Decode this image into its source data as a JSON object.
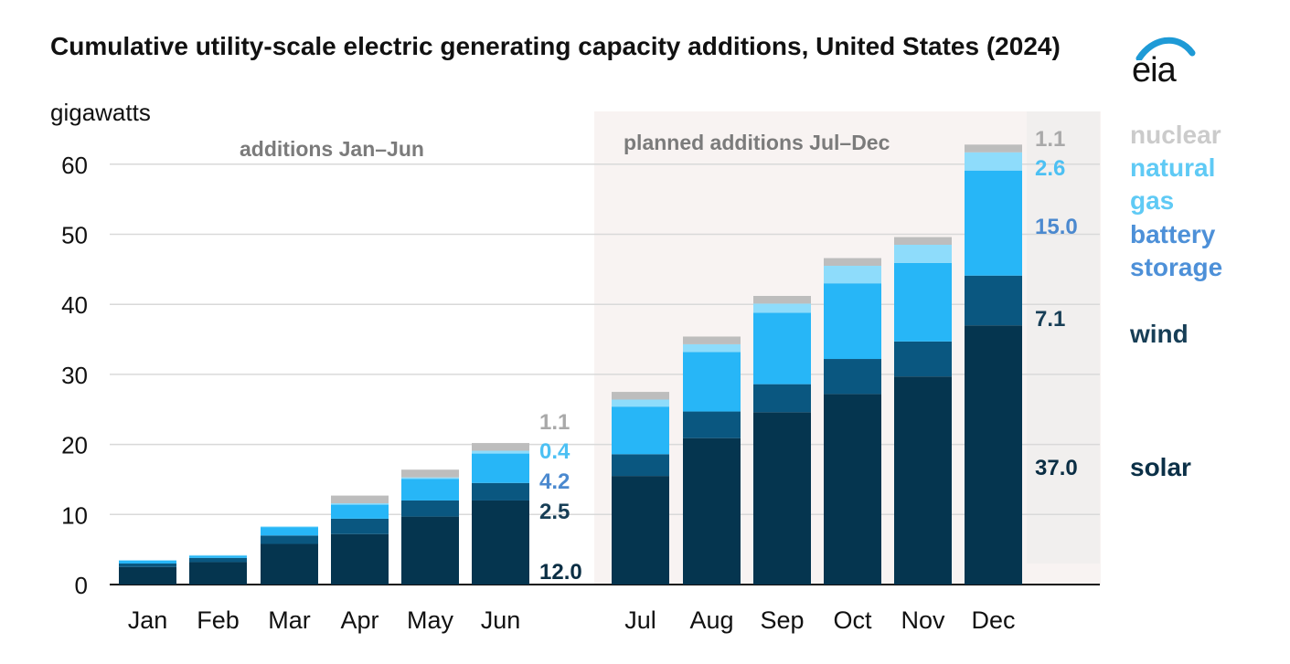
{
  "header": {
    "title": "Cumulative utility-scale electric generating capacity additions, United States (2024)",
    "unit": "gigawatts",
    "logo_text": "eia"
  },
  "colors": {
    "solar": "#05354f",
    "wind": "#0a5780",
    "battery": "#27b6f7",
    "gas": "#8edcfb",
    "nuclear": "#bdbdbd",
    "shade": "#f8f3f2",
    "legend_nuclear": "#cbcbcb",
    "legend_gas": "#5fcaf5",
    "legend_battery": "#4d90d8",
    "legend_solar": "#0b3047",
    "region_label": "#7b7b7b",
    "label_nuclear": "#a9a9a9",
    "label_gas": "#4cc0f3",
    "label_battery": "#4b89cf",
    "label_wind": "#173e56",
    "label_solar": "#0b2e44"
  },
  "chart_data": {
    "type": "bar",
    "stacked": true,
    "title": "Cumulative utility-scale electric generating capacity additions, United States (2024)",
    "ylabel": "gigawatts",
    "ylim": [
      0,
      65
    ],
    "yticks": [
      0,
      10,
      20,
      30,
      40,
      50,
      60
    ],
    "grid": true,
    "categories": [
      "Jan",
      "Feb",
      "Mar",
      "Apr",
      "May",
      "Jun",
      "Jul",
      "Aug",
      "Sep",
      "Oct",
      "Nov",
      "Dec"
    ],
    "series": [
      {
        "name": "solar",
        "key": "solar",
        "values": [
          2.5,
          3.2,
          5.8,
          7.2,
          9.7,
          12.0,
          15.5,
          20.9,
          24.6,
          27.2,
          29.7,
          37.0
        ]
      },
      {
        "name": "wind",
        "key": "wind",
        "values": [
          0.5,
          0.6,
          1.2,
          2.2,
          2.3,
          2.5,
          3.1,
          3.8,
          4.0,
          5.0,
          5.0,
          7.1
        ]
      },
      {
        "name": "battery storage",
        "key": "battery",
        "values": [
          0.4,
          0.3,
          1.2,
          2.0,
          3.1,
          4.2,
          6.8,
          8.5,
          10.2,
          10.8,
          11.2,
          15.0
        ]
      },
      {
        "name": "natural gas",
        "key": "gas",
        "values": [
          0.1,
          0.1,
          0.1,
          0.2,
          0.2,
          0.4,
          1.0,
          1.1,
          1.3,
          2.5,
          2.6,
          2.6
        ]
      },
      {
        "name": "nuclear",
        "key": "nuclear",
        "values": [
          0.0,
          0.0,
          0.0,
          1.1,
          1.1,
          1.1,
          1.1,
          1.1,
          1.1,
          1.1,
          1.1,
          1.1
        ]
      }
    ],
    "annotations": {
      "region_left": "additions Jan–Jun",
      "region_right": "planned additions Jul–Dec",
      "jun_labels": [
        "1.1",
        "0.4",
        "4.2",
        "2.5",
        "12.0"
      ],
      "dec_labels": [
        "1.1",
        "2.6",
        "15.0",
        "7.1",
        "37.0"
      ]
    },
    "legend": {
      "position": "right",
      "items": [
        {
          "label": "nuclear",
          "key": "nuclear"
        },
        {
          "label": "natural gas",
          "key": "gas"
        },
        {
          "label": "battery storage",
          "key": "battery"
        },
        {
          "label": "wind",
          "key": "wind"
        },
        {
          "label": "solar",
          "key": "solar"
        }
      ]
    }
  }
}
